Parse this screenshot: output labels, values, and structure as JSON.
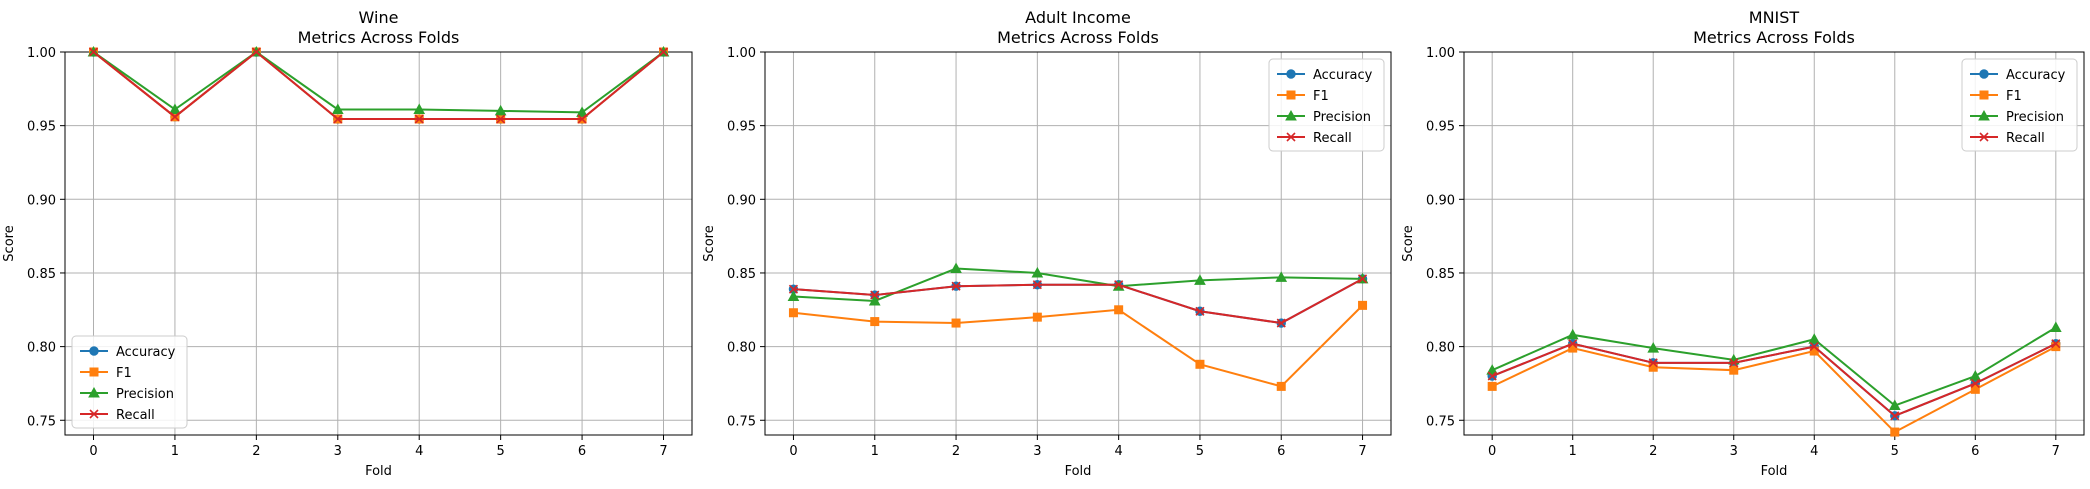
{
  "chart_data": [
    {
      "type": "line",
      "title": "Wine\nMetrics Across Folds",
      "xlabel": "Fold",
      "ylabel": "Score",
      "x": [
        0,
        1,
        2,
        3,
        4,
        5,
        6,
        7
      ],
      "xticks": [
        "0",
        "1",
        "2",
        "3",
        "4",
        "5",
        "6",
        "7"
      ],
      "ylim": [
        0.74,
        1.0
      ],
      "yticks": [
        "0.75",
        "0.80",
        "0.85",
        "0.90",
        "0.95",
        "1.00"
      ],
      "grid": true,
      "legend": "lower left",
      "series": [
        {
          "name": "Accuracy",
          "color": "#1f77b4",
          "marker": "circle",
          "values": [
            1.0,
            0.956,
            1.0,
            0.9545,
            0.9545,
            0.9545,
            0.9545,
            1.0
          ]
        },
        {
          "name": "F1",
          "color": "#ff7f0e",
          "marker": "square",
          "values": [
            1.0,
            0.956,
            1.0,
            0.9545,
            0.9545,
            0.9545,
            0.9545,
            1.0
          ]
        },
        {
          "name": "Precision",
          "color": "#2ca02c",
          "marker": "triangle",
          "values": [
            1.0,
            0.961,
            1.0,
            0.961,
            0.961,
            0.96,
            0.959,
            1.0
          ]
        },
        {
          "name": "Recall",
          "color": "#d62728",
          "marker": "x",
          "values": [
            1.0,
            0.956,
            1.0,
            0.9545,
            0.9545,
            0.9545,
            0.9545,
            1.0
          ]
        }
      ]
    },
    {
      "type": "line",
      "title": "Adult Income\nMetrics Across Folds",
      "xlabel": "Fold",
      "ylabel": "Score",
      "x": [
        0,
        1,
        2,
        3,
        4,
        5,
        6,
        7
      ],
      "xticks": [
        "0",
        "1",
        "2",
        "3",
        "4",
        "5",
        "6",
        "7"
      ],
      "ylim": [
        0.74,
        1.0
      ],
      "yticks": [
        "0.75",
        "0.80",
        "0.85",
        "0.90",
        "0.95",
        "1.00"
      ],
      "grid": true,
      "legend": "upper right",
      "series": [
        {
          "name": "Accuracy",
          "color": "#1f77b4",
          "marker": "circle",
          "values": [
            0.839,
            0.835,
            0.841,
            0.842,
            0.842,
            0.824,
            0.816,
            0.846
          ]
        },
        {
          "name": "F1",
          "color": "#ff7f0e",
          "marker": "square",
          "values": [
            0.823,
            0.817,
            0.816,
            0.82,
            0.825,
            0.788,
            0.773,
            0.828
          ]
        },
        {
          "name": "Precision",
          "color": "#2ca02c",
          "marker": "triangle",
          "values": [
            0.834,
            0.831,
            0.853,
            0.85,
            0.841,
            0.845,
            0.847,
            0.846
          ]
        },
        {
          "name": "Recall",
          "color": "#d62728",
          "marker": "x",
          "values": [
            0.839,
            0.835,
            0.841,
            0.842,
            0.842,
            0.824,
            0.816,
            0.846
          ]
        }
      ]
    },
    {
      "type": "line",
      "title": "MNIST\nMetrics Across Folds",
      "xlabel": "Fold",
      "ylabel": "Score",
      "x": [
        0,
        1,
        2,
        3,
        4,
        5,
        6,
        7
      ],
      "xticks": [
        "0",
        "1",
        "2",
        "3",
        "4",
        "5",
        "6",
        "7"
      ],
      "ylim": [
        0.74,
        1.0
      ],
      "yticks": [
        "0.75",
        "0.80",
        "0.85",
        "0.90",
        "0.95",
        "1.00"
      ],
      "grid": true,
      "legend": "upper right",
      "series": [
        {
          "name": "Accuracy",
          "color": "#1f77b4",
          "marker": "circle",
          "values": [
            0.78,
            0.802,
            0.789,
            0.789,
            0.8,
            0.753,
            0.775,
            0.802
          ]
        },
        {
          "name": "F1",
          "color": "#ff7f0e",
          "marker": "square",
          "values": [
            0.773,
            0.799,
            0.786,
            0.784,
            0.797,
            0.742,
            0.771,
            0.8
          ]
        },
        {
          "name": "Precision",
          "color": "#2ca02c",
          "marker": "triangle",
          "values": [
            0.784,
            0.808,
            0.799,
            0.791,
            0.805,
            0.76,
            0.78,
            0.813
          ]
        },
        {
          "name": "Recall",
          "color": "#d62728",
          "marker": "x",
          "values": [
            0.78,
            0.802,
            0.789,
            0.789,
            0.8,
            0.753,
            0.775,
            0.802
          ]
        }
      ]
    }
  ]
}
